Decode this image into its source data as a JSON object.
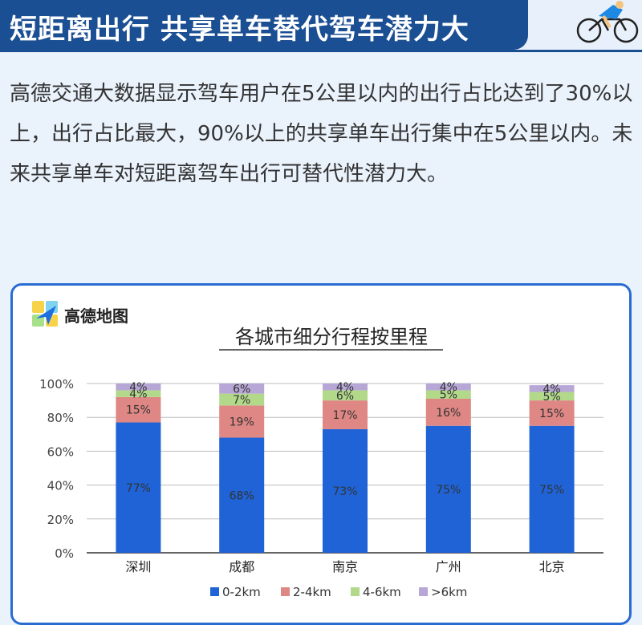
{
  "header": {
    "title": "短距离出行 共享单车替代驾车潜力大"
  },
  "intro": {
    "text": "高德交通大数据显示驾车用户在5公里以内的出行占比达到了30%以上，出行占比最大，90%以上的共享单车出行集中在5公里以内。未来共享单车对短距离驾车出行可替代性潜力大。"
  },
  "brand": {
    "name": "高德地图"
  },
  "colors": {
    "header_bg": "#1b4f93",
    "accent": "#2a6bd1"
  },
  "chart_data": {
    "type": "bar",
    "stacked": true,
    "title": "各城市细分行程按里程",
    "categories": [
      "深圳",
      "成都",
      "南京",
      "广州",
      "北京"
    ],
    "series": [
      {
        "name": "0-2km",
        "color": "#1f63d6",
        "values": [
          77,
          68,
          73,
          75,
          75
        ]
      },
      {
        "name": "2-4km",
        "color": "#df8784",
        "values": [
          15,
          19,
          17,
          16,
          15
        ]
      },
      {
        "name": "4-6km",
        "color": "#b2d98a",
        "values": [
          4,
          7,
          6,
          5,
          5
        ]
      },
      {
        "name": ">6km",
        "color": "#b7a7d6",
        "values": [
          4,
          6,
          4,
          4,
          4
        ]
      }
    ],
    "data_labels": [
      [
        "77%",
        "68%",
        "73%",
        "75%",
        "75%"
      ],
      [
        "15%",
        "19%",
        "17%",
        "16%",
        "15%"
      ],
      [
        "4%",
        "7%",
        "6%",
        "5%",
        "5%"
      ],
      [
        "4%",
        "6%",
        "4%",
        "4%",
        "4%"
      ]
    ],
    "yticks": [
      "0%",
      "20%",
      "40%",
      "60%",
      "80%",
      "100%"
    ],
    "ylim": [
      0,
      100
    ],
    "grid": true,
    "legend_position": "bottom"
  }
}
